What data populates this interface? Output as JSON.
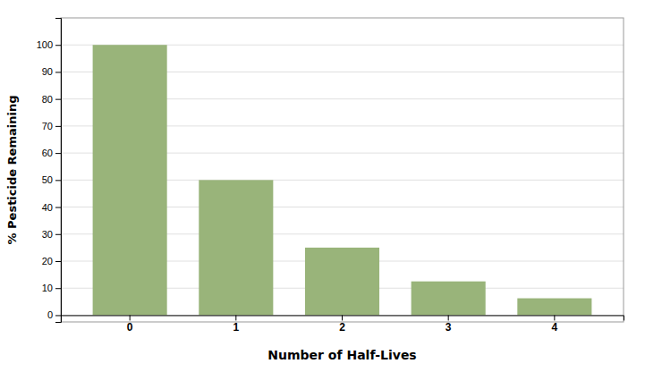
{
  "chart_data": {
    "type": "bar",
    "categories": [
      "0",
      "1",
      "2",
      "3",
      "4"
    ],
    "values": [
      100,
      50,
      25,
      12.5,
      6.25
    ],
    "color": "#99b47a",
    "xlabel": "Number of Half-Lives",
    "ylabel": "% Pesticide Remaining",
    "ylim": [
      -2.5,
      110
    ],
    "yticks": [
      0,
      10,
      20,
      30,
      40,
      50,
      60,
      70,
      80,
      90,
      100
    ],
    "grid": true
  }
}
